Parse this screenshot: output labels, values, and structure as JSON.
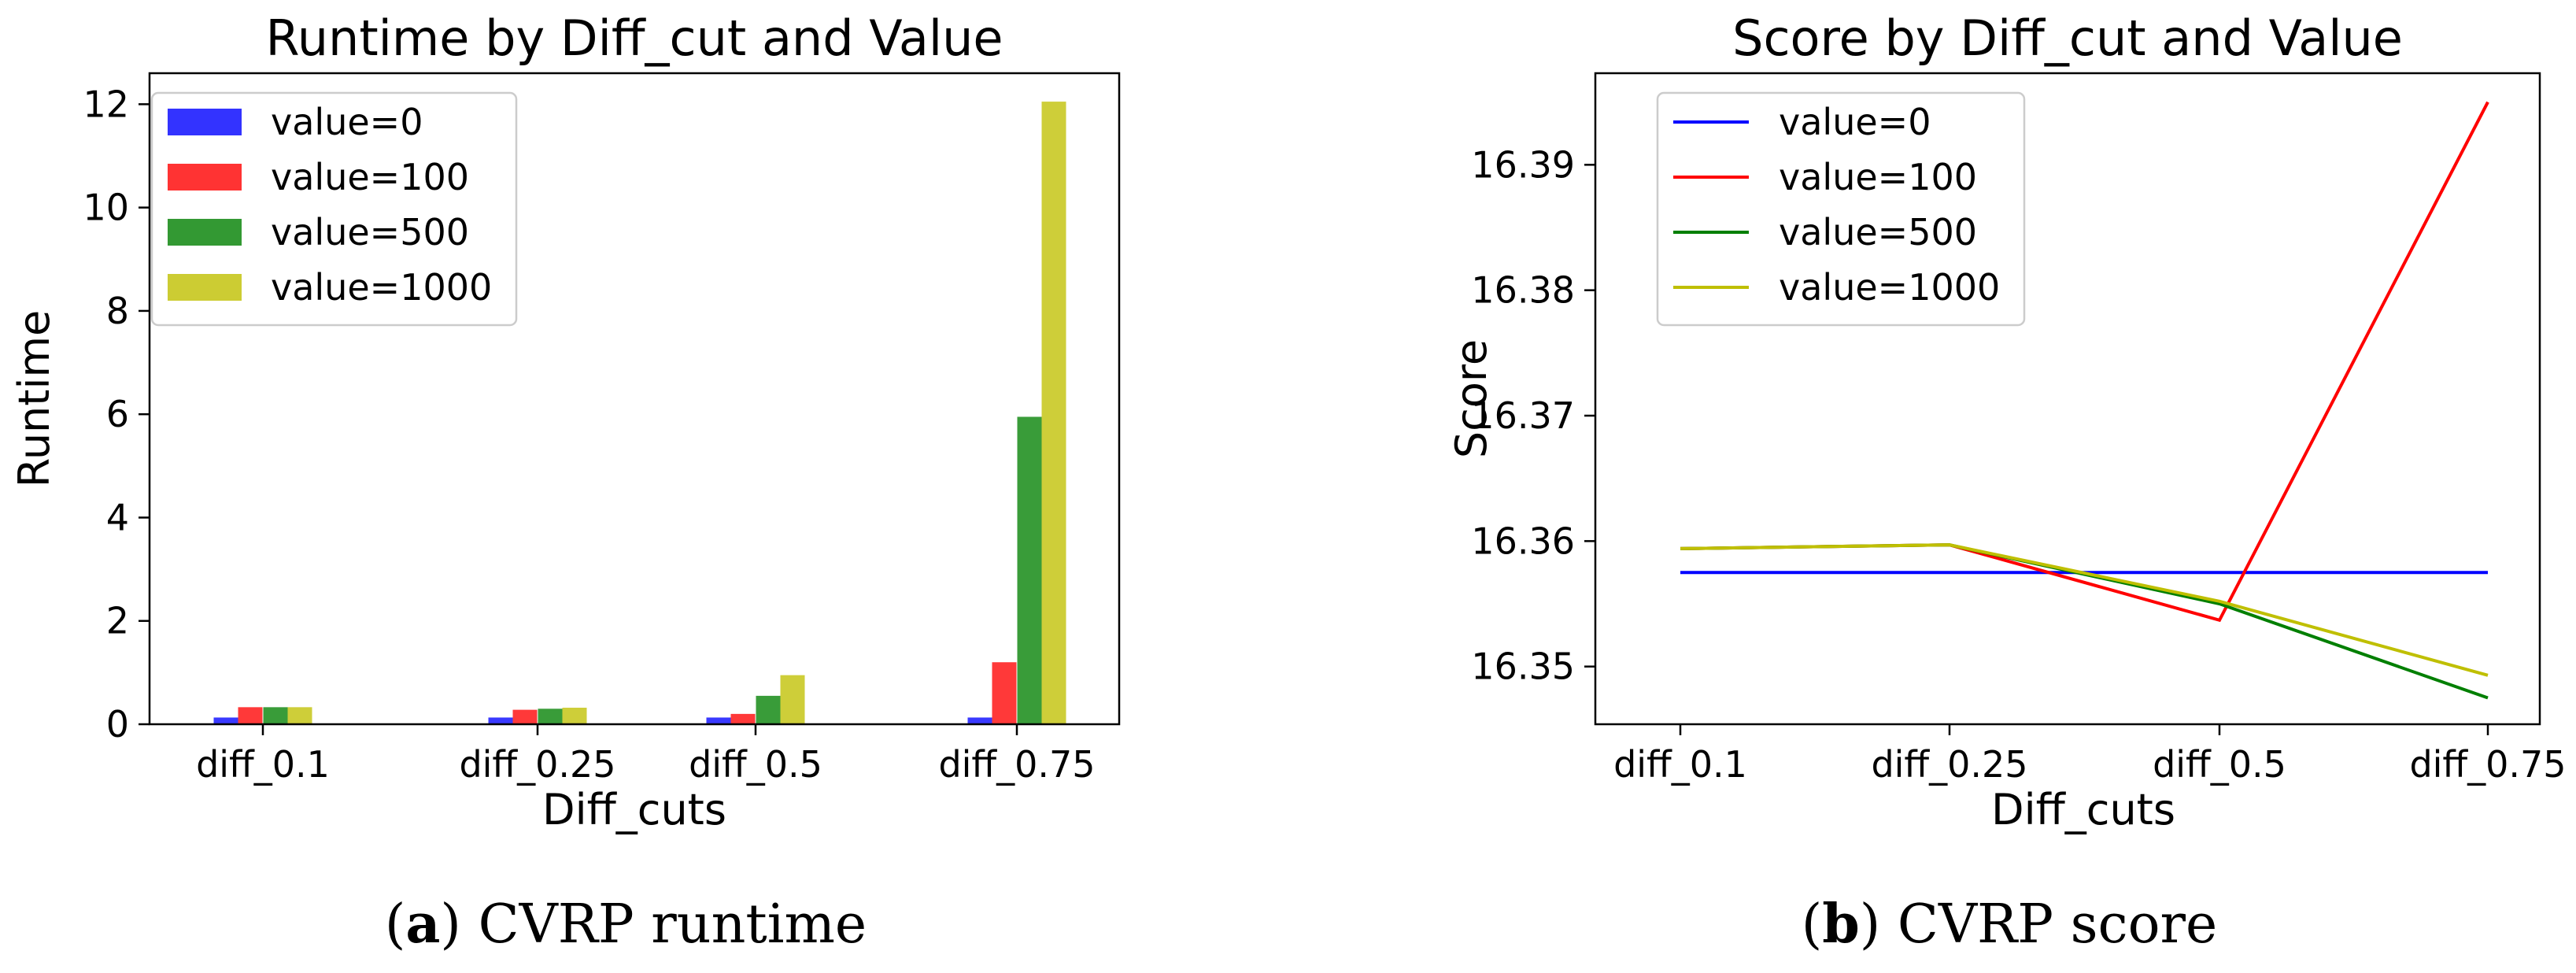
{
  "chart_data": [
    {
      "type": "bar",
      "title": "Runtime by Diff_cut and Value",
      "xlabel": "Diff_cuts",
      "ylabel": "Runtime",
      "categories": [
        "diff_0.1",
        "diff_0.25",
        "diff_0.5",
        "diff_0.75"
      ],
      "ylim": [
        0,
        12.6
      ],
      "yticks": [
        0,
        2,
        4,
        6,
        8,
        10,
        12
      ],
      "series": [
        {
          "name": "value=0",
          "color": "#3333ff",
          "values": [
            0.13,
            0.13,
            0.13,
            0.13
          ]
        },
        {
          "name": "value=100",
          "color": "#ff3333",
          "values": [
            0.33,
            0.28,
            0.2,
            1.2
          ]
        },
        {
          "name": "value=500",
          "color": "#339933",
          "values": [
            0.33,
            0.3,
            0.55,
            5.95
          ]
        },
        {
          "name": "value=1000",
          "color": "#cccc33",
          "values": [
            0.33,
            0.32,
            0.95,
            12.05
          ]
        }
      ],
      "legend": "top-left",
      "grid": false
    },
    {
      "type": "line",
      "title": "Score by Diff_cut and Value",
      "xlabel": "Diff_cuts",
      "ylabel": "Score",
      "categories": [
        "diff_0.1",
        "diff_0.25",
        "diff_0.5",
        "diff_0.75"
      ],
      "ylim": [
        16.3454,
        16.3973
      ],
      "yticks": [
        16.35,
        16.36,
        16.37,
        16.38,
        16.39
      ],
      "series": [
        {
          "name": "value=0",
          "color": "#0000ff",
          "values": [
            16.3575,
            16.3575,
            16.3575,
            16.3575
          ]
        },
        {
          "name": "value=100",
          "color": "#ff0000",
          "values": [
            16.3594,
            16.3597,
            16.3537,
            16.395
          ]
        },
        {
          "name": "value=500",
          "color": "#007f00",
          "values": [
            16.3594,
            16.3597,
            16.355,
            16.3475
          ]
        },
        {
          "name": "value=1000",
          "color": "#bfbf00",
          "values": [
            16.3594,
            16.3597,
            16.3552,
            16.3493
          ]
        }
      ],
      "legend": "top-left",
      "grid": false
    }
  ],
  "captions": [
    {
      "letter": "a",
      "text": "CVRP runtime"
    },
    {
      "letter": "b",
      "text": "CVRP score"
    }
  ]
}
